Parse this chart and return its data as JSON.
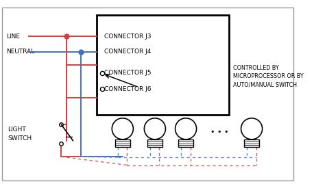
{
  "fig_width": 4.58,
  "fig_height": 2.75,
  "dpi": 100,
  "background": "#ffffff",
  "red": "#d04040",
  "blue": "#4070c0",
  "red_d": "#d06060",
  "blue_d": "#6090d0",
  "black": "#000000",
  "connector_labels": [
    "CONNECTOR J3",
    "CONNECTOR J4",
    "CONNECTOR J5",
    "CONNECTOR J6"
  ],
  "controlled_by": [
    "CONTROLLED BY",
    "MICROPROCESSOR OR BY",
    "AUTO/MANUAL SWITCH"
  ],
  "line_label": "LINE",
  "neutral_label": "NEUTRAL",
  "switch_label": [
    "LIGHT",
    "SWITCH"
  ],
  "dots": "• • •"
}
